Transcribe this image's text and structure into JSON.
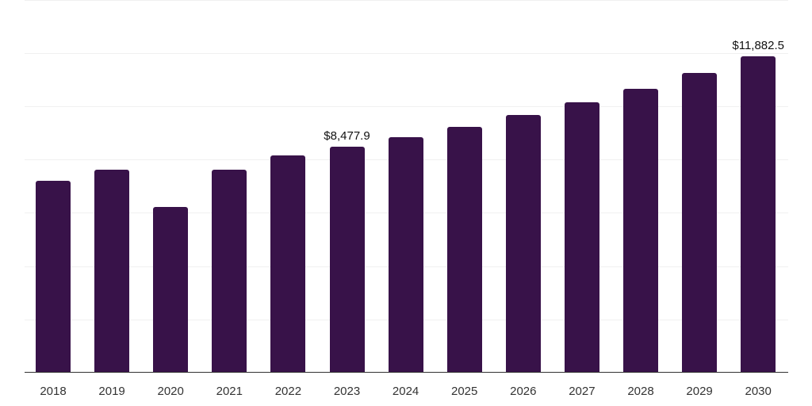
{
  "chart_data": {
    "type": "bar",
    "title": "",
    "xlabel": "",
    "ylabel": "",
    "categories": [
      "2018",
      "2019",
      "2020",
      "2021",
      "2022",
      "2023",
      "2024",
      "2025",
      "2026",
      "2027",
      "2028",
      "2029",
      "2030"
    ],
    "values": [
      7194,
      7612,
      6239,
      7612,
      8149,
      8477.9,
      8836,
      9224,
      9672,
      10149,
      10657,
      11254,
      11882.5
    ],
    "data_labels": [
      {
        "category": "2023",
        "text": "$8,477.9"
      },
      {
        "category": "2030",
        "text": "$11,882.5"
      }
    ],
    "ylim": [
      0,
      14000
    ],
    "grid": true,
    "legend": null,
    "bar_color": "#381249"
  }
}
